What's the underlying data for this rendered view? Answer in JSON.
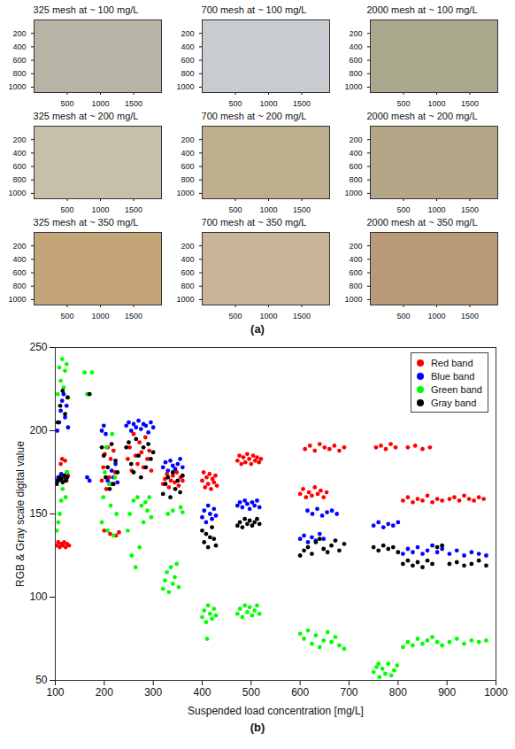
{
  "chart_data": [
    {
      "type": "image",
      "caption": "(a)",
      "xlim": [
        0,
        1920
      ],
      "ylim": [
        1080,
        0
      ],
      "xticks": [
        500,
        1000,
        1500
      ],
      "yticks": [
        200,
        400,
        600,
        800,
        1000
      ],
      "panels": [
        {
          "title": "325 mesh at ~ 100 mg/L",
          "color": "#b7b4a5"
        },
        {
          "title": "700 mesh at ~ 100 mg/L",
          "color": "#c8cbd0"
        },
        {
          "title": "2000 mesh at ~ 100 mg/L",
          "color": "#a9a88c"
        },
        {
          "title": "325 mesh at ~ 200 mg/L",
          "color": "#c8bfa8"
        },
        {
          "title": "700 mesh at ~ 200 mg/L",
          "color": "#bdae8e"
        },
        {
          "title": "2000 mesh at ~ 200 mg/L",
          "color": "#b4a686"
        },
        {
          "title": "325 mesh at ~ 350 mg/L",
          "color": "#c4a57a"
        },
        {
          "title": "700 mesh at ~ 350 mg/L",
          "color": "#c8b496"
        },
        {
          "title": "2000 mesh at ~ 350 mg/L",
          "color": "#b89a78"
        }
      ]
    },
    {
      "type": "scatter",
      "caption": "(b)",
      "xlabel": "Suspended load concentration [mg/L]",
      "ylabel": "RGB & Gray scale digital value",
      "xlim": [
        100,
        1000
      ],
      "ylim": [
        50,
        250
      ],
      "xticks": [
        100,
        200,
        300,
        400,
        500,
        600,
        700,
        800,
        900,
        1000
      ],
      "yticks": [
        50,
        100,
        150,
        200,
        250
      ],
      "legend": "top-right",
      "marker": "circle",
      "series": [
        {
          "name": "Red band",
          "color": "#ff0000",
          "x": [
            103,
            106,
            109,
            112,
            115,
            118,
            121,
            124,
            128,
            105,
            108,
            111,
            114,
            117,
            120,
            123,
            126,
            195,
            198,
            201,
            204,
            207,
            210,
            213,
            216,
            219,
            222,
            200,
            212,
            224,
            230,
            248,
            252,
            256,
            260,
            264,
            268,
            272,
            276,
            280,
            284,
            288,
            292,
            296,
            320,
            324,
            328,
            332,
            336,
            340,
            344,
            348,
            352,
            356,
            360,
            400,
            403,
            406,
            409,
            412,
            415,
            418,
            421,
            424,
            427,
            430,
            472,
            476,
            480,
            484,
            488,
            492,
            496,
            500,
            504,
            508,
            512,
            516,
            520,
            600,
            606,
            612,
            618,
            624,
            630,
            636,
            642,
            648,
            654,
            610,
            620,
            630,
            640,
            650,
            660,
            670,
            680,
            690,
            755,
            765,
            775,
            785,
            795,
            810,
            820,
            830,
            840,
            850,
            860,
            870,
            880,
            890,
            820,
            835,
            850,
            865,
            905,
            915,
            925,
            935,
            945,
            955,
            965,
            975
          ],
          "values": [
            131,
            133,
            130,
            132,
            131,
            133,
            130,
            132,
            131,
            170,
            172,
            180,
            183,
            171,
            182,
            170,
            173,
            170,
            178,
            186,
            165,
            190,
            172,
            183,
            168,
            188,
            175,
            140,
            138,
            137,
            139,
            183,
            190,
            176,
            198,
            185,
            180,
            193,
            187,
            178,
            196,
            183,
            188,
            176,
            168,
            171,
            174,
            166,
            170,
            173,
            169,
            175,
            167,
            172,
            170,
            170,
            175,
            166,
            172,
            168,
            174,
            165,
            171,
            169,
            173,
            167,
            182,
            185,
            180,
            184,
            181,
            186,
            183,
            180,
            185,
            182,
            184,
            181,
            183,
            162,
            165,
            160,
            163,
            161,
            166,
            162,
            164,
            160,
            163,
            189,
            191,
            188,
            192,
            190,
            189,
            191,
            188,
            190,
            190,
            191,
            189,
            192,
            190,
            158,
            160,
            157,
            159,
            158,
            161,
            157,
            159,
            158,
            190,
            191,
            189,
            190,
            159,
            160,
            158,
            161,
            159,
            158,
            160,
            159
          ]
        },
        {
          "name": "Blue band",
          "color": "#0000ff",
          "x": [
            103,
            106,
            109,
            112,
            115,
            118,
            121,
            124,
            104,
            108,
            111,
            114,
            117,
            120,
            123,
            126,
            165,
            170,
            195,
            199,
            203,
            207,
            211,
            215,
            219,
            223,
            227,
            245,
            250,
            255,
            260,
            265,
            270,
            275,
            280,
            285,
            290,
            295,
            300,
            320,
            325,
            330,
            335,
            340,
            345,
            350,
            355,
            360,
            400,
            404,
            408,
            412,
            416,
            420,
            424,
            428,
            472,
            477,
            482,
            487,
            492,
            497,
            502,
            507,
            512,
            517,
            600,
            608,
            616,
            624,
            632,
            640,
            648,
            615,
            625,
            635,
            645,
            655,
            665,
            675,
            750,
            760,
            770,
            780,
            790,
            800,
            810,
            820,
            830,
            840,
            850,
            860,
            870,
            880,
            890,
            905,
            920,
            935,
            950,
            965,
            980
          ],
          "values": [
            170,
            172,
            171,
            174,
            170,
            173,
            171,
            175,
            200,
            205,
            212,
            218,
            222,
            208,
            215,
            202,
            172,
            170,
            200,
            203,
            198,
            170,
            168,
            176,
            172,
            180,
            169,
            203,
            205,
            200,
            204,
            202,
            206,
            201,
            204,
            203,
            199,
            205,
            202,
            178,
            181,
            176,
            182,
            179,
            177,
            180,
            183,
            178,
            148,
            152,
            145,
            155,
            150,
            147,
            153,
            149,
            155,
            157,
            154,
            158,
            156,
            153,
            157,
            155,
            158,
            154,
            135,
            137,
            133,
            136,
            134,
            138,
            135,
            152,
            150,
            153,
            149,
            151,
            152,
            150,
            143,
            145,
            142,
            144,
            143,
            145,
            126,
            129,
            127,
            130,
            126,
            128,
            131,
            127,
            129,
            126,
            128,
            125,
            127,
            126,
            125
          ]
        },
        {
          "name": "Green band",
          "color": "#00ff00",
          "x": [
            103,
            106,
            109,
            112,
            115,
            118,
            121,
            124,
            105,
            108,
            111,
            114,
            117,
            120,
            123,
            126,
            160,
            175,
            165,
            195,
            198,
            201,
            204,
            207,
            210,
            213,
            216,
            219,
            222,
            225,
            248,
            252,
            256,
            260,
            264,
            268,
            272,
            276,
            280,
            284,
            288,
            292,
            296,
            320,
            324,
            328,
            332,
            336,
            340,
            344,
            348,
            352,
            356,
            340,
            330,
            360,
            400,
            404,
            408,
            412,
            416,
            420,
            424,
            428,
            410,
            472,
            477,
            482,
            487,
            492,
            497,
            502,
            507,
            512,
            517,
            600,
            608,
            616,
            624,
            632,
            640,
            648,
            656,
            664,
            672,
            680,
            690,
            750,
            756,
            762,
            768,
            774,
            780,
            786,
            792,
            798,
            760,
            810,
            820,
            830,
            840,
            850,
            860,
            870,
            880,
            890,
            905,
            920,
            935,
            950,
            965,
            980
          ],
          "values": [
            140,
            145,
            150,
            158,
            165,
            170,
            160,
            175,
            222,
            238,
            230,
            243,
            226,
            236,
            240,
            220,
            235,
            235,
            222,
            145,
            160,
            175,
            190,
            140,
            168,
            155,
            198,
            137,
            172,
            150,
            140,
            150,
            125,
            158,
            118,
            160,
            130,
            155,
            145,
            157,
            152,
            160,
            148,
            105,
            110,
            115,
            103,
            118,
            108,
            112,
            120,
            106,
            154,
            152,
            150,
            151,
            88,
            92,
            85,
            95,
            90,
            87,
            93,
            89,
            75,
            90,
            93,
            88,
            95,
            91,
            94,
            89,
            92,
            95,
            90,
            78,
            75,
            80,
            72,
            77,
            70,
            74,
            79,
            73,
            76,
            71,
            69,
            55,
            58,
            52,
            57,
            54,
            60,
            53,
            56,
            59,
            60,
            70,
            73,
            71,
            75,
            72,
            74,
            76,
            73,
            71,
            73,
            75,
            72,
            74,
            73,
            74
          ]
        },
        {
          "name": "Gray band",
          "color": "#000000",
          "x": [
            103,
            106,
            109,
            112,
            115,
            118,
            121,
            124,
            105,
            110,
            115,
            120,
            125,
            170,
            195,
            199,
            203,
            207,
            211,
            215,
            219,
            223,
            227,
            245,
            250,
            255,
            260,
            265,
            270,
            275,
            280,
            285,
            290,
            295,
            300,
            320,
            325,
            330,
            335,
            340,
            345,
            350,
            355,
            360,
            400,
            404,
            408,
            412,
            416,
            420,
            424,
            428,
            472,
            477,
            482,
            487,
            492,
            497,
            502,
            507,
            512,
            517,
            600,
            608,
            616,
            624,
            632,
            640,
            648,
            656,
            664,
            672,
            680,
            690,
            750,
            760,
            770,
            780,
            790,
            800,
            810,
            820,
            830,
            840,
            850,
            860,
            870,
            880,
            890,
            905,
            920,
            935,
            950,
            965,
            980
          ],
          "values": [
            168,
            170,
            172,
            171,
            169,
            173,
            170,
            172,
            205,
            215,
            224,
            210,
            220,
            222,
            190,
            185,
            172,
            178,
            165,
            192,
            168,
            182,
            175,
            190,
            193,
            180,
            175,
            195,
            185,
            172,
            190,
            178,
            192,
            183,
            187,
            162,
            168,
            172,
            160,
            175,
            165,
            170,
            163,
            173,
            140,
            133,
            138,
            130,
            136,
            142,
            135,
            131,
            143,
            145,
            142,
            147,
            144,
            146,
            143,
            145,
            147,
            144,
            125,
            128,
            130,
            126,
            133,
            135,
            129,
            127,
            131,
            134,
            128,
            132,
            130,
            128,
            131,
            129,
            130,
            127,
            120,
            122,
            119,
            121,
            118,
            122,
            120,
            130,
            131,
            120,
            121,
            119,
            120,
            122,
            119
          ]
        }
      ]
    }
  ]
}
